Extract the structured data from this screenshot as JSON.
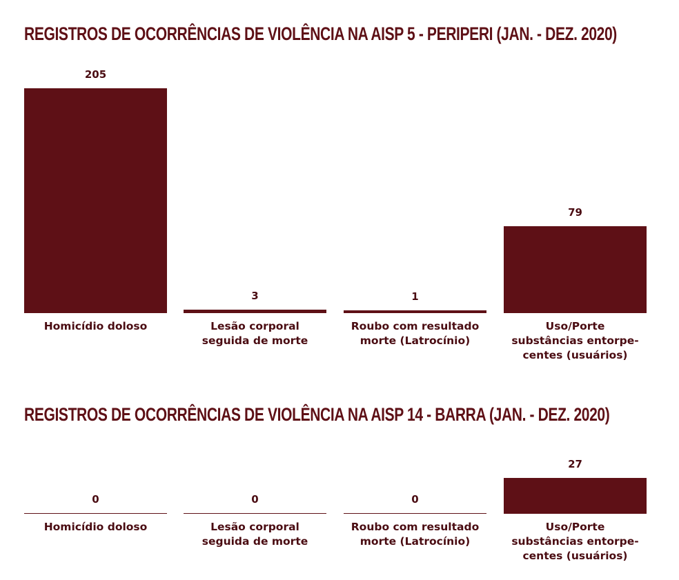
{
  "chart_data": [
    {
      "type": "bar",
      "title": "REGISTROS DE OCORRÊNCIAS DE VIOLÊNCIA NA AISP 5 - PERIPERI (JAN. - DEZ. 2020)",
      "categories": [
        "Homicídio doloso",
        "Lesão corporal\nseguida de morte",
        "Roubo com resultado\nmorte (Latrocínio)",
        "Uso/Porte\nsubstâncias entorpe-\ncentes (usuários)"
      ],
      "values": [
        205,
        3,
        1,
        79
      ],
      "value_labels": [
        "205",
        "3",
        "1",
        "79"
      ],
      "color": "#5e1016",
      "grid": false
    },
    {
      "type": "bar",
      "title": "REGISTROS DE OCORRÊNCIAS DE VIOLÊNCIA NA AISP 14 - BARRA (JAN. - DEZ. 2020)",
      "categories": [
        "Homicídio doloso",
        "Lesão corporal\nseguida de morte",
        "Roubo com resultado\nmorte (Latrocínio)",
        "Uso/Porte\nsubstâncias entorpe-\ncentes (usuários)"
      ],
      "values": [
        0,
        0,
        0,
        27
      ],
      "value_labels": [
        "0",
        "0",
        "0",
        "27"
      ],
      "color": "#5e1016",
      "grid": false
    }
  ]
}
